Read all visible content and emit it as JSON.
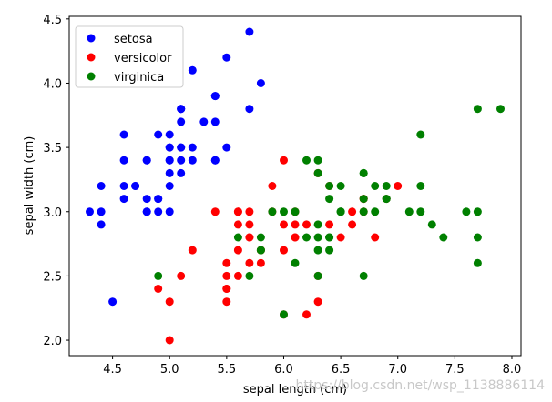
{
  "chart_data": {
    "type": "scatter",
    "xlabel": "sepal length (cm)",
    "ylabel": "sepal width (cm)",
    "xlim": [
      4.12,
      8.08
    ],
    "ylim": [
      1.88,
      4.52
    ],
    "xticks": [
      "4.5",
      "5.0",
      "5.5",
      "6.0",
      "6.5",
      "7.0",
      "7.5",
      "8.0"
    ],
    "yticks": [
      "2.0",
      "2.5",
      "3.0",
      "3.5",
      "4.0",
      "4.5"
    ],
    "legend_position": "top-left",
    "grid": false,
    "series": [
      {
        "name": "setosa",
        "color": "#0000ff",
        "points": [
          [
            5.1,
            3.5
          ],
          [
            4.9,
            3.0
          ],
          [
            4.7,
            3.2
          ],
          [
            4.6,
            3.1
          ],
          [
            5.0,
            3.6
          ],
          [
            5.4,
            3.9
          ],
          [
            4.6,
            3.4
          ],
          [
            5.0,
            3.4
          ],
          [
            4.4,
            2.9
          ],
          [
            4.9,
            3.1
          ],
          [
            5.4,
            3.7
          ],
          [
            4.8,
            3.4
          ],
          [
            4.8,
            3.0
          ],
          [
            4.3,
            3.0
          ],
          [
            5.8,
            4.0
          ],
          [
            5.7,
            4.4
          ],
          [
            5.4,
            3.9
          ],
          [
            5.1,
            3.5
          ],
          [
            5.7,
            3.8
          ],
          [
            5.1,
            3.8
          ],
          [
            5.4,
            3.4
          ],
          [
            5.1,
            3.7
          ],
          [
            4.6,
            3.6
          ],
          [
            5.1,
            3.3
          ],
          [
            4.8,
            3.4
          ],
          [
            5.0,
            3.0
          ],
          [
            5.0,
            3.4
          ],
          [
            5.2,
            3.5
          ],
          [
            5.2,
            3.4
          ],
          [
            4.7,
            3.2
          ],
          [
            4.8,
            3.1
          ],
          [
            5.4,
            3.4
          ],
          [
            5.2,
            4.1
          ],
          [
            5.5,
            4.2
          ],
          [
            4.9,
            3.1
          ],
          [
            5.0,
            3.2
          ],
          [
            5.5,
            3.5
          ],
          [
            4.9,
            3.6
          ],
          [
            4.4,
            3.0
          ],
          [
            5.1,
            3.4
          ],
          [
            5.0,
            3.5
          ],
          [
            4.5,
            2.3
          ],
          [
            4.4,
            3.2
          ],
          [
            5.0,
            3.5
          ],
          [
            5.1,
            3.8
          ],
          [
            4.8,
            3.0
          ],
          [
            5.1,
            3.8
          ],
          [
            4.6,
            3.2
          ],
          [
            5.3,
            3.7
          ],
          [
            5.0,
            3.3
          ]
        ]
      },
      {
        "name": "versicolor",
        "color": "#ff0000",
        "points": [
          [
            7.0,
            3.2
          ],
          [
            6.4,
            3.2
          ],
          [
            6.9,
            3.1
          ],
          [
            5.5,
            2.3
          ],
          [
            6.5,
            2.8
          ],
          [
            5.7,
            2.8
          ],
          [
            6.3,
            3.3
          ],
          [
            4.9,
            2.4
          ],
          [
            6.6,
            2.9
          ],
          [
            5.2,
            2.7
          ],
          [
            5.0,
            2.0
          ],
          [
            5.9,
            3.0
          ],
          [
            6.0,
            2.2
          ],
          [
            6.1,
            2.9
          ],
          [
            5.6,
            2.9
          ],
          [
            6.7,
            3.1
          ],
          [
            5.6,
            3.0
          ],
          [
            5.8,
            2.7
          ],
          [
            6.2,
            2.2
          ],
          [
            5.6,
            2.5
          ],
          [
            5.9,
            3.2
          ],
          [
            6.1,
            2.8
          ],
          [
            6.3,
            2.5
          ],
          [
            6.1,
            2.8
          ],
          [
            6.4,
            2.9
          ],
          [
            6.6,
            3.0
          ],
          [
            6.8,
            2.8
          ],
          [
            6.7,
            3.0
          ],
          [
            6.0,
            2.9
          ],
          [
            5.7,
            2.6
          ],
          [
            5.5,
            2.4
          ],
          [
            5.5,
            2.4
          ],
          [
            5.8,
            2.7
          ],
          [
            6.0,
            2.7
          ],
          [
            5.4,
            3.0
          ],
          [
            6.0,
            3.4
          ],
          [
            6.7,
            3.1
          ],
          [
            6.3,
            2.3
          ],
          [
            5.6,
            3.0
          ],
          [
            5.5,
            2.5
          ],
          [
            5.5,
            2.6
          ],
          [
            6.1,
            3.0
          ],
          [
            5.8,
            2.6
          ],
          [
            5.0,
            2.3
          ],
          [
            5.6,
            2.7
          ],
          [
            5.7,
            3.0
          ],
          [
            5.7,
            2.9
          ],
          [
            6.2,
            2.9
          ],
          [
            5.1,
            2.5
          ],
          [
            5.7,
            2.8
          ]
        ]
      },
      {
        "name": "virginica",
        "color": "#008000",
        "points": [
          [
            6.3,
            3.3
          ],
          [
            5.8,
            2.7
          ],
          [
            7.1,
            3.0
          ],
          [
            6.3,
            2.9
          ],
          [
            6.5,
            3.0
          ],
          [
            7.6,
            3.0
          ],
          [
            4.9,
            2.5
          ],
          [
            7.3,
            2.9
          ],
          [
            6.7,
            2.5
          ],
          [
            7.2,
            3.6
          ],
          [
            6.5,
            3.2
          ],
          [
            6.4,
            2.7
          ],
          [
            6.8,
            3.0
          ],
          [
            5.7,
            2.5
          ],
          [
            5.8,
            2.8
          ],
          [
            6.4,
            3.2
          ],
          [
            6.5,
            3.0
          ],
          [
            7.7,
            3.8
          ],
          [
            7.7,
            2.6
          ],
          [
            6.0,
            2.2
          ],
          [
            6.9,
            3.2
          ],
          [
            5.6,
            2.8
          ],
          [
            7.7,
            2.8
          ],
          [
            6.3,
            2.7
          ],
          [
            6.7,
            3.3
          ],
          [
            7.2,
            3.2
          ],
          [
            6.2,
            2.8
          ],
          [
            6.1,
            3.0
          ],
          [
            6.4,
            2.8
          ],
          [
            7.2,
            3.0
          ],
          [
            7.4,
            2.8
          ],
          [
            7.9,
            3.8
          ],
          [
            6.4,
            2.8
          ],
          [
            6.3,
            2.8
          ],
          [
            6.1,
            2.6
          ],
          [
            7.7,
            3.0
          ],
          [
            6.3,
            3.4
          ],
          [
            6.4,
            3.1
          ],
          [
            6.0,
            3.0
          ],
          [
            6.9,
            3.1
          ],
          [
            6.7,
            3.1
          ],
          [
            6.9,
            3.1
          ],
          [
            5.8,
            2.7
          ],
          [
            6.8,
            3.2
          ],
          [
            6.7,
            3.3
          ],
          [
            6.7,
            3.0
          ],
          [
            6.3,
            2.5
          ],
          [
            6.5,
            3.0
          ],
          [
            6.2,
            3.4
          ],
          [
            5.9,
            3.0
          ]
        ]
      }
    ]
  },
  "watermark": "https://blog.csdn.net/wsp_1138886114"
}
